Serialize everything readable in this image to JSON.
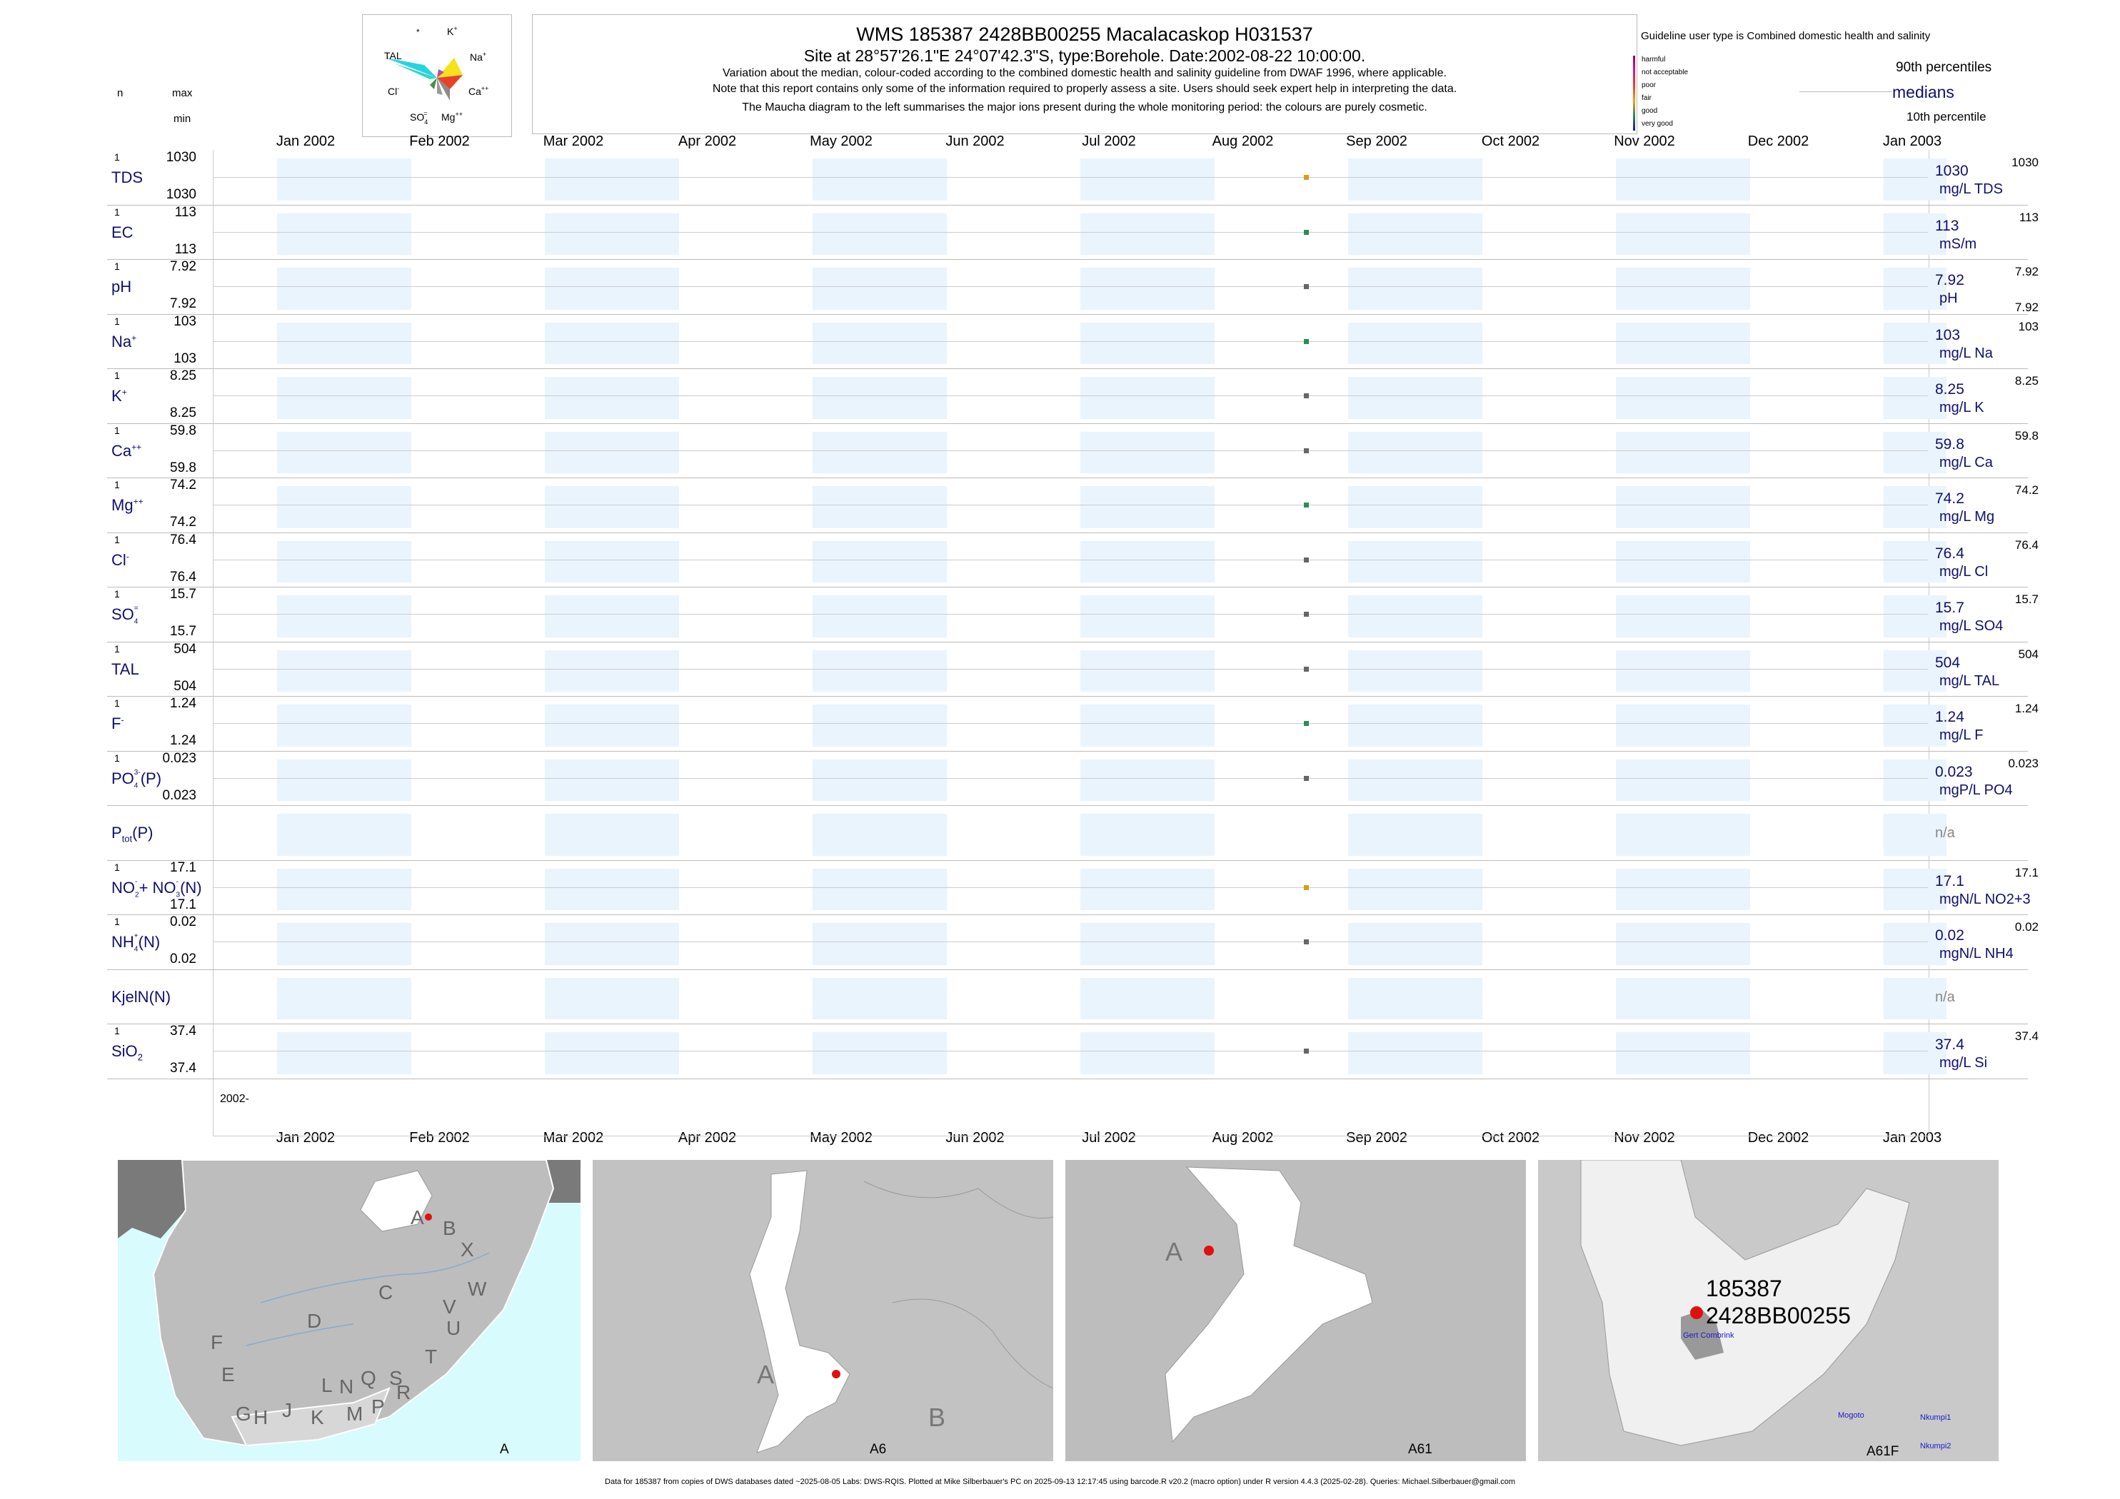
{
  "header": {
    "title": "WMS 185387 2428BB00255 Macalacaskop H031537",
    "site_line": "Site at 28°57'26.1\"E 24°07'42.3\"S, type:Borehole. Date:2002-08-22 10:00:00.",
    "note1": "Variation about the median,  colour-coded according to the combined domestic health and salinity guideline from DWAF 1996, where applicable.",
    "note2": "Note that this report contains only some of the information required to properly assess a site. Users should seek expert help in interpreting the data.",
    "note3": "The Maucha diagram to the left summarises the major ions present during the whole monitoring period: the colours are purely cosmetic."
  },
  "left_header": {
    "n": "n",
    "max": "max",
    "min": "min"
  },
  "maucha": {
    "labels": {
      "star": "*",
      "k": "K",
      "k_sup": "+",
      "tal": "TAL",
      "na": "Na",
      "na_sup": "+",
      "cl": "Cl",
      "cl_sup": "-",
      "ca": "Ca",
      "ca_sup": "++",
      "so4": "SO",
      "so4_sub": "4",
      "so4_sup": "=",
      "mg": "Mg",
      "mg_sup": "++"
    },
    "colors": {
      "tal": "#27d3e0",
      "na": "#f5e21a",
      "ca": "#e8412a",
      "k": "#b54fa8",
      "mg": "#8a8a8a",
      "cl": "#4a8f4a"
    }
  },
  "legend": {
    "guideline_title": "Guideline user type is Combined domestic health and salinity",
    "categories": [
      {
        "label": "harmful",
        "color": "#8b0a50"
      },
      {
        "label": "not acceptable",
        "color": "#e0148c"
      },
      {
        "label": "poor",
        "color": "#e8412a"
      },
      {
        "label": "fair",
        "color": "#f5a21a"
      },
      {
        "label": "good",
        "color": "#2e8b57"
      },
      {
        "label": "very good",
        "color": "#1a1a9e"
      }
    ],
    "p90": "90th percentiles",
    "medians": "medians",
    "p10": "10th percentile"
  },
  "x_axis": {
    "months": [
      "Jan 2002",
      "Feb 2002",
      "Mar 2002",
      "Apr 2002",
      "May 2002",
      "Jun 2002",
      "Jul 2002",
      "Aug 2002",
      "Sep 2002",
      "Oct 2002",
      "Nov 2002",
      "Dec 2002",
      "Jan 2003"
    ],
    "year_label": "2002-"
  },
  "chart_data": {
    "type": "scatter",
    "x_range": [
      "2002-01-01",
      "2003-01-01"
    ],
    "sample_date": "2002-08-22",
    "panels": [
      {
        "param": "TDS",
        "sup": "",
        "sub": "",
        "n": "1",
        "max": "1030",
        "min": "1030",
        "median": "1030",
        "p90": "1030",
        "p10": "",
        "unit": "mg/L TDS",
        "color": "#d4a017"
      },
      {
        "param": "EC",
        "sup": "",
        "sub": "",
        "n": "1",
        "max": "113",
        "min": "113",
        "median": "113",
        "p90": "113",
        "p10": "",
        "unit": "mS/m",
        "color": "#2e8b57"
      },
      {
        "param": "pH",
        "sup": "",
        "sub": "",
        "n": "1",
        "max": "7.92",
        "min": "7.92",
        "median": "7.92",
        "p90": "7.92",
        "p10": "7.92",
        "unit": "pH",
        "color": "#666666"
      },
      {
        "param": "Na",
        "sup": "+",
        "sub": "",
        "n": "1",
        "max": "103",
        "min": "103",
        "median": "103",
        "p90": "103",
        "p10": "",
        "unit": "mg/L Na",
        "color": "#2e8b57"
      },
      {
        "param": "K",
        "sup": "+",
        "sub": "",
        "n": "1",
        "max": "8.25",
        "min": "8.25",
        "median": "8.25",
        "p90": "8.25",
        "p10": "",
        "unit": "mg/L K",
        "color": "#666666"
      },
      {
        "param": "Ca",
        "sup": "++",
        "sub": "",
        "n": "1",
        "max": "59.8",
        "min": "59.8",
        "median": "59.8",
        "p90": "59.8",
        "p10": "",
        "unit": "mg/L Ca",
        "color": "#666666"
      },
      {
        "param": "Mg",
        "sup": "++",
        "sub": "",
        "n": "1",
        "max": "74.2",
        "min": "74.2",
        "median": "74.2",
        "p90": "74.2",
        "p10": "",
        "unit": "mg/L Mg",
        "color": "#2e8b57"
      },
      {
        "param": "Cl",
        "sup": "-",
        "sub": "",
        "n": "1",
        "max": "76.4",
        "min": "76.4",
        "median": "76.4",
        "p90": "76.4",
        "p10": "",
        "unit": "mg/L Cl",
        "color": "#666666"
      },
      {
        "param": "SO",
        "sup": "=",
        "sub": "4",
        "n": "1",
        "max": "15.7",
        "min": "15.7",
        "median": "15.7",
        "p90": "15.7",
        "p10": "",
        "unit": "mg/L SO4",
        "color": "#666666"
      },
      {
        "param": "TAL",
        "sup": "",
        "sub": "",
        "n": "1",
        "max": "504",
        "min": "504",
        "median": "504",
        "p90": "504",
        "p10": "",
        "unit": "mg/L TAL",
        "color": "#666666"
      },
      {
        "param": "F",
        "sup": "-",
        "sub": "",
        "n": "1",
        "max": "1.24",
        "min": "1.24",
        "median": "1.24",
        "p90": "1.24",
        "p10": "",
        "unit": "mg/L F",
        "color": "#2e8b57"
      },
      {
        "param": "PO",
        "sup": "3-",
        "sub": "4",
        "suffix": "(P)",
        "n": "1",
        "max": "0.023",
        "min": "0.023",
        "median": "0.023",
        "p90": "0.023",
        "p10": "",
        "unit": "mgP/L PO4",
        "color": "#666666"
      },
      {
        "param": "P",
        "sub2": "tot",
        "suffix": "(P)",
        "n": "",
        "max": "",
        "min": "",
        "median": "n/a",
        "p90": "",
        "p10": "",
        "unit": "",
        "color": ""
      },
      {
        "param": "NO",
        "sup": "-",
        "sub": "2",
        "suffix": "+ NO",
        "sup2": "-",
        "sub3": "3",
        "suffix2": "(N)",
        "n": "1",
        "max": "17.1",
        "min": "17.1",
        "median": "17.1",
        "p90": "17.1",
        "p10": "",
        "unit": "mgN/L NO2+3",
        "color": "#d4a017"
      },
      {
        "param": "NH",
        "sup": "+",
        "sub": "4",
        "suffix": "(N)",
        "n": "1",
        "max": "0.02",
        "min": "0.02",
        "median": "0.02",
        "p90": "0.02",
        "p10": "",
        "unit": "mgN/L NH4",
        "color": "#666666"
      },
      {
        "param": "KjelN(N)",
        "n": "",
        "max": "",
        "min": "",
        "median": "n/a",
        "p90": "",
        "p10": "",
        "unit": "",
        "color": ""
      },
      {
        "param": "SiO",
        "sup": "",
        "sub": "2",
        "n": "1",
        "max": "37.4",
        "min": "37.4",
        "median": "37.4",
        "p90": "37.4",
        "p10": "",
        "unit": "mg/L Si",
        "color": "#666666"
      }
    ]
  },
  "maps": [
    {
      "caption": "A",
      "letters": [
        "A",
        "B",
        "X",
        "W",
        "C",
        "V",
        "D",
        "U",
        "T",
        "F",
        "E",
        "L",
        "N",
        "Q",
        "S",
        "R",
        "G",
        "H",
        "J",
        "K",
        "M",
        "P"
      ]
    },
    {
      "caption": "A6",
      "letters": [
        "A",
        "B"
      ]
    },
    {
      "caption": "A61",
      "letters": [
        "A"
      ]
    },
    {
      "caption": "A61F",
      "site_id": "185387",
      "site_code": "2428BB00255",
      "places": [
        "Gert Combrink",
        "Mogoto",
        "Nkumpi1",
        "Nkumpi2"
      ]
    }
  ],
  "footer": "Data for 185387 from copies of DWS databases dated ~2025-08-05 Labs: DWS-RQIS. Plotted at Mike Silberbauer's PC on 2025-09-13 12:17:45 using barcode.R v20.2 (macro option) under R version 4.4.3 (2025-02-28). Queries: Michael.Silberbauer@gmail.com"
}
